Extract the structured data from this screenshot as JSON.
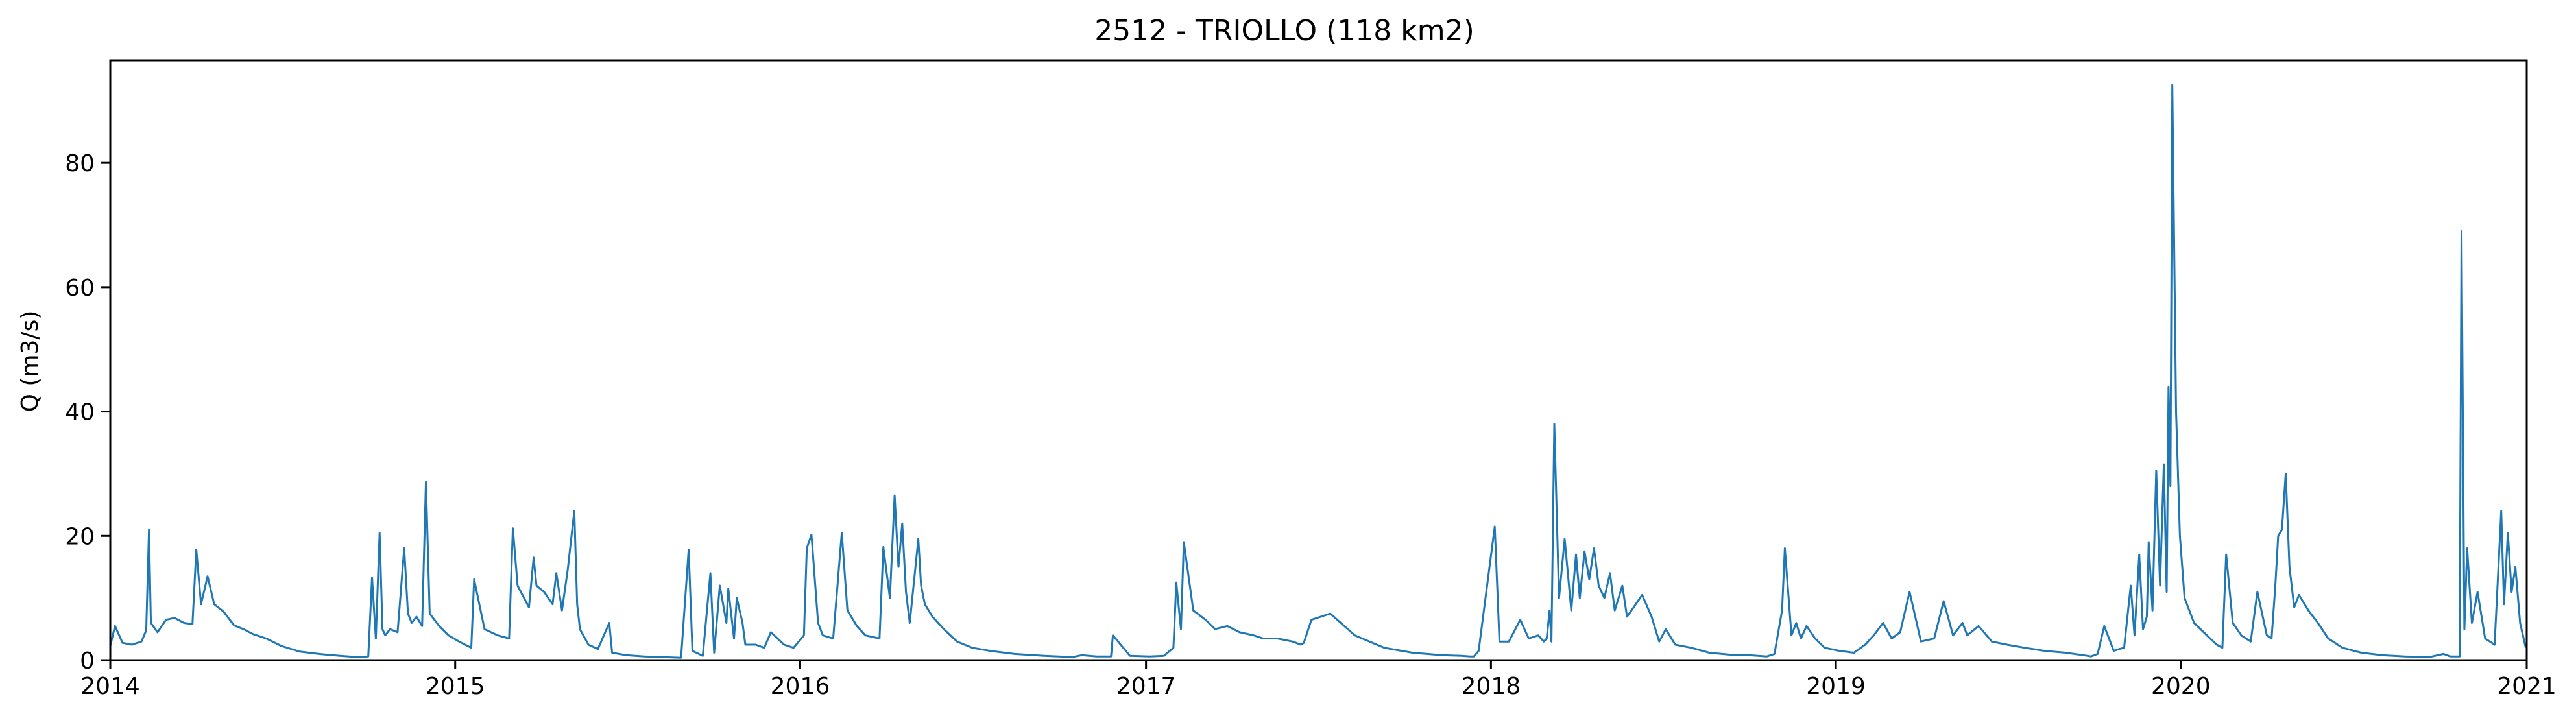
{
  "chart_data": {
    "type": "line",
    "title": "2512 - TRIOLLO (118 km2)",
    "xlabel": "",
    "ylabel": "Q (m3/s)",
    "xlim": [
      "2014-01-01",
      "2021-01-01"
    ],
    "ylim": [
      0,
      96.5
    ],
    "x_ticks": [
      "2014",
      "2015",
      "2016",
      "2017",
      "2018",
      "2019",
      "2020",
      "2021"
    ],
    "y_ticks": [
      0,
      20,
      40,
      60,
      80
    ],
    "grid": false,
    "line_color": "#1f77b4",
    "series": [
      {
        "x": [
          "2014-01-01",
          "2014-01-06",
          "2014-01-14",
          "2014-01-24",
          "2014-02-03",
          "2014-02-08",
          "2014-02-11",
          "2014-02-13",
          "2014-02-20",
          "2014-03-01",
          "2014-03-10",
          "2014-03-20",
          "2014-03-29",
          "2014-04-02",
          "2014-04-07",
          "2014-04-14",
          "2014-04-21",
          "2014-05-01",
          "2014-05-12",
          "2014-05-22",
          "2014-06-01",
          "2014-06-15",
          "2014-07-01",
          "2014-07-20",
          "2014-08-10",
          "2014-09-01",
          "2014-09-20",
          "2014-10-01",
          "2014-10-05",
          "2014-10-09",
          "2014-10-13",
          "2014-10-16",
          "2014-10-19",
          "2014-10-24",
          "2014-11-01",
          "2014-11-08",
          "2014-11-12",
          "2014-11-16",
          "2014-11-21",
          "2014-11-27",
          "2014-12-01",
          "2014-12-05",
          "2014-12-15",
          "2014-12-25",
          "2015-01-05",
          "2015-01-18",
          "2015-01-21",
          "2015-02-01",
          "2015-02-15",
          "2015-02-27",
          "2015-03-03",
          "2015-03-08",
          "2015-03-20",
          "2015-03-25",
          "2015-03-28",
          "2015-04-05",
          "2015-04-14",
          "2015-04-18",
          "2015-04-24",
          "2015-04-30",
          "2015-05-07",
          "2015-05-10",
          "2015-05-13",
          "2015-05-22",
          "2015-06-01",
          "2015-06-13",
          "2015-06-16",
          "2015-07-01",
          "2015-07-20",
          "2015-08-10",
          "2015-08-28",
          "2015-09-05",
          "2015-09-09",
          "2015-09-20",
          "2015-09-28",
          "2015-10-02",
          "2015-10-08",
          "2015-10-15",
          "2015-10-17",
          "2015-10-23",
          "2015-10-26",
          "2015-11-01",
          "2015-11-04",
          "2015-11-15",
          "2015-11-24",
          "2015-12-01",
          "2015-12-15",
          "2015-12-25",
          "2016-01-05",
          "2016-01-08",
          "2016-01-13",
          "2016-01-20",
          "2016-01-25",
          "2016-02-05",
          "2016-02-14",
          "2016-02-20",
          "2016-03-01",
          "2016-03-10",
          "2016-03-25",
          "2016-03-29",
          "2016-04-05",
          "2016-04-10",
          "2016-04-14",
          "2016-04-18",
          "2016-04-22",
          "2016-04-26",
          "2016-05-05",
          "2016-05-08",
          "2016-05-12",
          "2016-05-20",
          "2016-06-01",
          "2016-06-15",
          "2016-07-01",
          "2016-07-20",
          "2016-08-15",
          "2016-09-15",
          "2016-10-15",
          "2016-10-25",
          "2016-11-10",
          "2016-11-25",
          "2016-11-27",
          "2016-12-15",
          "2017-01-05",
          "2017-01-20",
          "2017-01-30",
          "2017-02-02",
          "2017-02-07",
          "2017-02-10",
          "2017-02-20",
          "2017-03-05",
          "2017-03-15",
          "2017-03-28",
          "2017-04-10",
          "2017-04-25",
          "2017-05-05",
          "2017-05-20",
          "2017-06-05",
          "2017-06-14",
          "2017-06-17",
          "2017-06-25",
          "2017-07-15",
          "2017-08-10",
          "2017-09-10",
          "2017-10-10",
          "2017-11-10",
          "2017-12-01",
          "2017-12-10",
          "2017-12-14",
          "2017-12-19",
          "2018-01-05",
          "2018-01-10",
          "2018-01-20",
          "2018-02-01",
          "2018-02-10",
          "2018-02-20",
          "2018-02-26",
          "2018-03-01",
          "2018-03-04",
          "2018-03-06",
          "2018-03-09",
          "2018-03-14",
          "2018-03-20",
          "2018-03-27",
          "2018-04-01",
          "2018-04-05",
          "2018-04-10",
          "2018-04-15",
          "2018-04-20",
          "2018-04-25",
          "2018-05-01",
          "2018-05-07",
          "2018-05-12",
          "2018-05-20",
          "2018-05-25",
          "2018-06-01",
          "2018-06-10",
          "2018-06-20",
          "2018-06-28",
          "2018-07-05",
          "2018-07-15",
          "2018-08-01",
          "2018-08-20",
          "2018-09-10",
          "2018-10-01",
          "2018-10-20",
          "2018-10-28",
          "2018-11-05",
          "2018-11-08",
          "2018-11-15",
          "2018-11-20",
          "2018-11-25",
          "2018-12-01",
          "2018-12-10",
          "2018-12-20",
          "2019-01-05",
          "2019-01-20",
          "2019-02-01",
          "2019-02-10",
          "2019-02-20",
          "2019-03-01",
          "2019-03-10",
          "2019-03-20",
          "2019-04-01",
          "2019-04-15",
          "2019-04-25",
          "2019-05-05",
          "2019-05-15",
          "2019-05-20",
          "2019-06-01",
          "2019-06-15",
          "2019-07-01",
          "2019-07-20",
          "2019-08-10",
          "2019-09-01",
          "2019-09-20",
          "2019-09-28",
          "2019-10-05",
          "2019-10-12",
          "2019-10-22",
          "2019-10-28",
          "2019-11-02",
          "2019-11-09",
          "2019-11-13",
          "2019-11-18",
          "2019-11-22",
          "2019-11-26",
          "2019-11-28",
          "2019-12-02",
          "2019-12-06",
          "2019-12-10",
          "2019-12-14",
          "2019-12-17",
          "2019-12-19",
          "2019-12-21",
          "2019-12-23",
          "2019-12-27",
          "2019-12-31",
          "2020-01-05",
          "2020-01-15",
          "2020-02-01",
          "2020-02-08",
          "2020-02-14",
          "2020-02-18",
          "2020-02-25",
          "2020-03-05",
          "2020-03-15",
          "2020-03-22",
          "2020-04-01",
          "2020-04-06",
          "2020-04-10",
          "2020-04-13",
          "2020-04-17",
          "2020-04-21",
          "2020-04-25",
          "2020-04-30",
          "2020-05-05",
          "2020-05-15",
          "2020-05-25",
          "2020-06-05",
          "2020-06-20",
          "2020-07-10",
          "2020-08-01",
          "2020-08-25",
          "2020-09-20",
          "2020-10-05",
          "2020-10-12",
          "2020-10-22",
          "2020-10-24",
          "2020-10-27",
          "2020-10-30",
          "2020-11-04",
          "2020-11-10",
          "2020-11-18",
          "2020-11-28",
          "2020-12-05",
          "2020-12-08",
          "2020-12-12",
          "2020-12-16",
          "2020-12-20",
          "2020-12-25",
          "2020-12-31"
        ],
        "y": [
          2.3,
          5.5,
          2.8,
          2.5,
          3.0,
          4.8,
          21.0,
          6.0,
          4.5,
          6.5,
          6.8,
          6.0,
          5.8,
          17.8,
          9.0,
          13.5,
          9.0,
          7.8,
          5.6,
          5.0,
          4.2,
          3.5,
          2.3,
          1.4,
          1.0,
          0.7,
          0.5,
          0.6,
          13.3,
          3.5,
          20.5,
          5.0,
          4.0,
          5.0,
          4.5,
          18.0,
          7.5,
          6.0,
          7.0,
          5.5,
          28.7,
          7.5,
          5.5,
          4.0,
          3.0,
          2.0,
          13.0,
          5.0,
          4.0,
          3.5,
          21.2,
          12.0,
          8.5,
          16.5,
          12.0,
          11.0,
          9.0,
          14.0,
          8.0,
          14.5,
          24.0,
          9.0,
          5.0,
          2.5,
          1.8,
          6.0,
          1.2,
          0.8,
          0.6,
          0.5,
          0.4,
          17.8,
          1.5,
          0.7,
          14.0,
          1.2,
          12.0,
          6.0,
          11.5,
          3.5,
          10.0,
          6.0,
          2.5,
          2.5,
          2.0,
          4.5,
          2.5,
          2.0,
          4.0,
          18.0,
          20.2,
          6.0,
          4.0,
          3.5,
          20.5,
          8.0,
          5.5,
          4.0,
          3.5,
          18.2,
          10.0,
          26.5,
          15.0,
          22.0,
          11.0,
          6.0,
          19.5,
          12.0,
          9.0,
          7.0,
          5.0,
          3.0,
          2.0,
          1.5,
          1.0,
          0.7,
          0.5,
          0.8,
          0.6,
          0.6,
          4.0,
          0.7,
          0.6,
          0.7,
          2.0,
          12.5,
          5.0,
          19.0,
          8.0,
          6.5,
          5.0,
          5.5,
          4.5,
          4.0,
          3.5,
          3.5,
          3.0,
          2.5,
          2.8,
          6.5,
          7.5,
          4.0,
          2.0,
          1.2,
          0.8,
          0.7,
          0.6,
          0.6,
          1.5,
          21.5,
          3.0,
          3.0,
          6.5,
          3.5,
          4.0,
          3.0,
          3.5,
          8.0,
          3.0,
          38.0,
          10.0,
          19.5,
          8.0,
          17.0,
          10.0,
          17.5,
          13.0,
          18.0,
          12.0,
          10.0,
          14.0,
          8.0,
          12.0,
          7.0,
          8.5,
          10.5,
          7.0,
          3.0,
          5.0,
          2.5,
          2.0,
          1.2,
          0.9,
          0.8,
          0.6,
          1.0,
          8.0,
          18.0,
          4.0,
          6.0,
          3.5,
          5.5,
          3.5,
          2.0,
          1.5,
          1.2,
          2.5,
          4.0,
          6.0,
          3.5,
          4.5,
          11.0,
          3.0,
          3.5,
          9.5,
          4.0,
          6.0,
          4.0,
          5.5,
          3.0,
          2.5,
          2.0,
          1.5,
          1.2,
          0.8,
          0.6,
          1.0,
          5.5,
          1.5,
          1.8,
          2.0,
          12.0,
          4.0,
          17.0,
          5.0,
          7.0,
          19.0,
          8.0,
          30.5,
          12.0,
          31.5,
          11.0,
          44.0,
          28.0,
          92.5,
          40.0,
          20.0,
          10.0,
          6.0,
          3.5,
          2.5,
          2.0,
          17.0,
          6.0,
          4.0,
          3.0,
          11.0,
          4.0,
          3.5,
          12.0,
          20.0,
          21.0,
          30.0,
          15.0,
          8.5,
          10.5,
          8.0,
          6.0,
          3.5,
          2.0,
          1.2,
          0.8,
          0.6,
          0.5,
          1.0,
          0.6,
          0.6,
          69.0,
          5.0,
          18.0,
          6.0,
          11.0,
          3.5,
          2.5,
          24.0,
          9.0,
          20.5,
          11.0,
          15.0,
          6.0,
          2.0
        ]
      }
    ]
  }
}
